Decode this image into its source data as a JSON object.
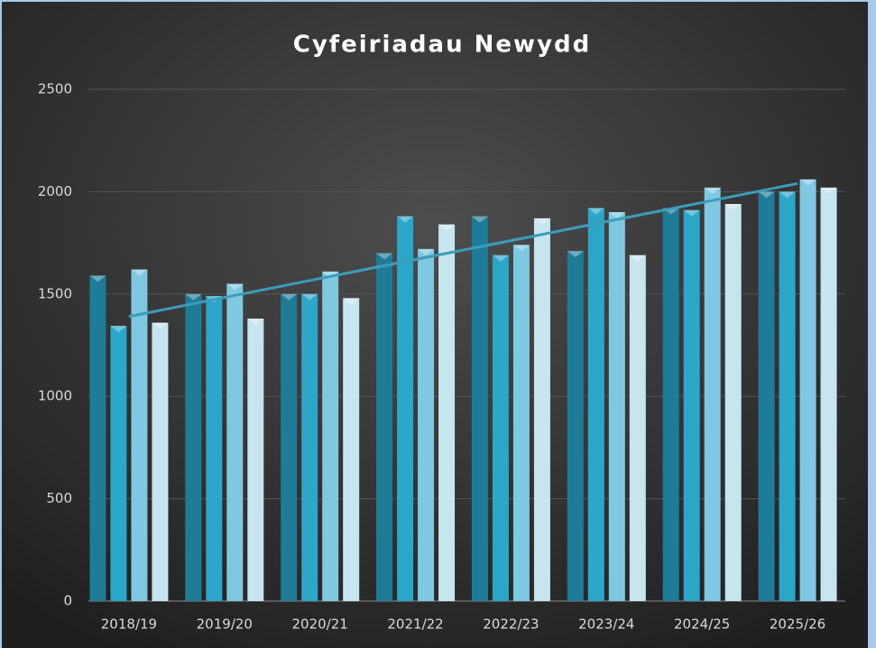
{
  "chart_data": {
    "type": "bar",
    "title": "Cyfeiriadau Newydd",
    "categories": [
      "2018/19",
      "2019/20",
      "2020/21",
      "2021/22",
      "2022/23",
      "2023/24",
      "2024/25",
      "2025/26"
    ],
    "series": [
      {
        "color": "#1e7c98",
        "values": [
          1590,
          1500,
          1500,
          1700,
          1880,
          1710,
          1920,
          2000
        ]
      },
      {
        "color": "#2aa7c9",
        "values": [
          1345,
          1490,
          1500,
          1880,
          1690,
          1920,
          1910,
          2000
        ]
      },
      {
        "color": "#7ec8e2",
        "values": [
          1620,
          1550,
          1610,
          1720,
          1740,
          1900,
          2020,
          2060
        ]
      },
      {
        "color": "#c6e5ef",
        "values": [
          1360,
          1380,
          1480,
          1840,
          1870,
          1690,
          1940,
          2020
        ]
      }
    ],
    "trendline": {
      "color": "#3d9cbb",
      "values": [
        1390,
        1483,
        1576,
        1669,
        1761,
        1854,
        1947,
        2040
      ]
    },
    "ylim": [
      0,
      2500
    ],
    "yticks": [
      0,
      500,
      1000,
      1500,
      2000,
      2500
    ],
    "grid": true
  }
}
